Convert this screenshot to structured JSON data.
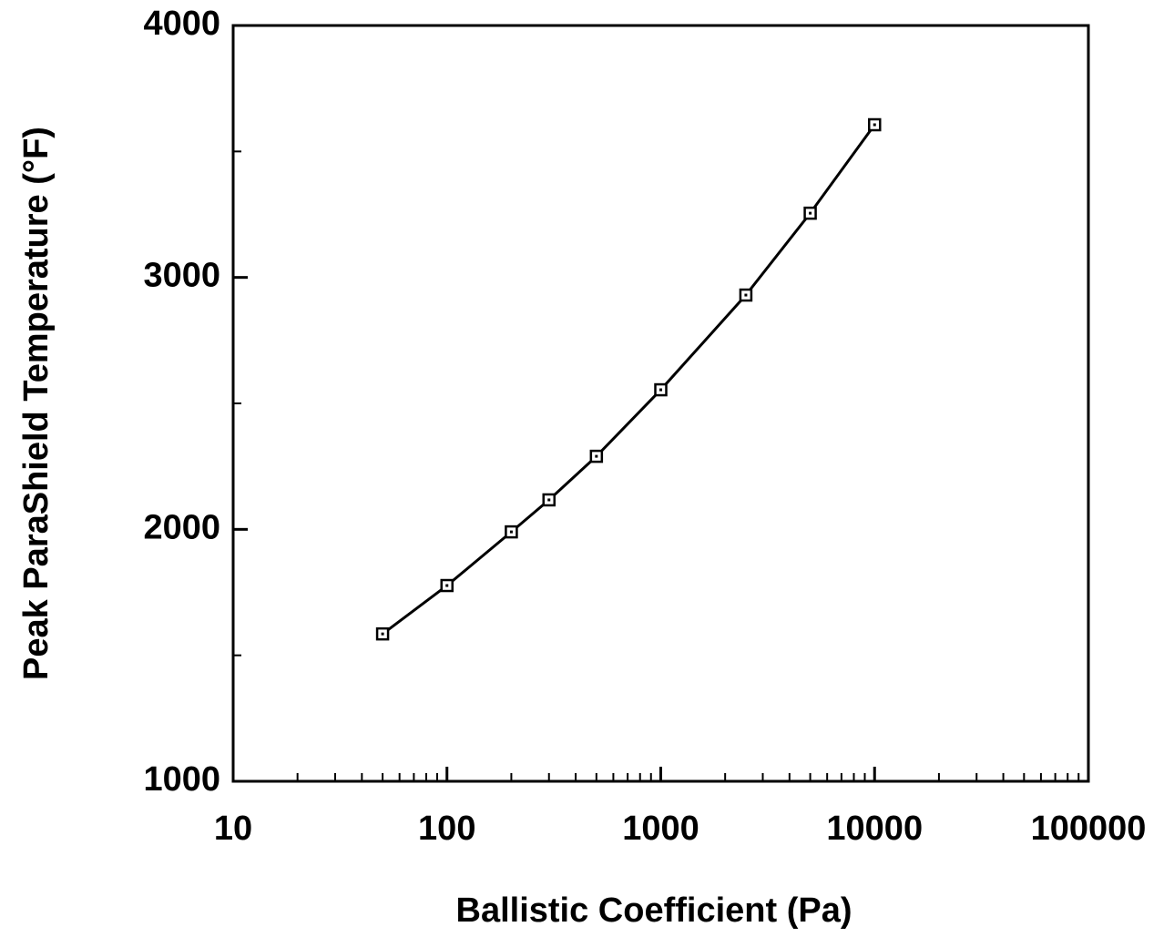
{
  "chart_data": {
    "type": "line",
    "x_label": "Ballistic Coefficient (Pa)",
    "y_label": "Peak ParaShield Temperature (°F)",
    "x": [
      50,
      100,
      200,
      300,
      500,
      1000,
      2500,
      5000,
      10000
    ],
    "series": [
      {
        "color": "#000000",
        "values": [
          1585,
          1777,
          1990,
          2117,
          2290,
          2554,
          2930,
          3255,
          3606
        ]
      }
    ],
    "xlim": [
      10,
      100000
    ],
    "xticks": [
      10,
      100,
      1000,
      10000,
      100000
    ],
    "x_log": true,
    "ylim": [
      1000,
      4000
    ],
    "yticks": [
      1000,
      2000,
      3000,
      4000
    ],
    "grid": false
  }
}
